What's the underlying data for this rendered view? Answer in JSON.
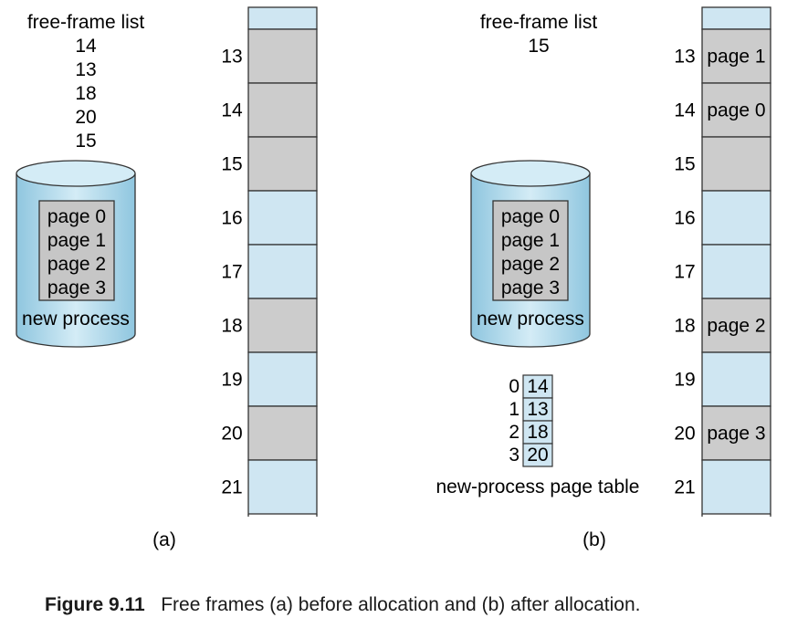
{
  "panel_a": {
    "free_frame_title": "free-frame list",
    "free_frames": [
      "14",
      "13",
      "18",
      "20",
      "15"
    ],
    "disk": {
      "pages": [
        "page 0",
        "page 1",
        "page 2",
        "page 3"
      ],
      "label": "new process"
    },
    "memory": {
      "frames": [
        {
          "number": "13",
          "state": "free",
          "content": ""
        },
        {
          "number": "14",
          "state": "free",
          "content": ""
        },
        {
          "number": "15",
          "state": "free",
          "content": ""
        },
        {
          "number": "16",
          "state": "used",
          "content": ""
        },
        {
          "number": "17",
          "state": "used",
          "content": ""
        },
        {
          "number": "18",
          "state": "free",
          "content": ""
        },
        {
          "number": "19",
          "state": "used",
          "content": ""
        },
        {
          "number": "20",
          "state": "free",
          "content": ""
        },
        {
          "number": "21",
          "state": "used",
          "content": ""
        }
      ]
    },
    "label": "(a)"
  },
  "panel_b": {
    "free_frame_title": "free-frame list",
    "free_frames": [
      "15"
    ],
    "disk": {
      "pages": [
        "page 0",
        "page 1",
        "page 2",
        "page 3"
      ],
      "label": "new process"
    },
    "page_table": {
      "indices": [
        "0",
        "1",
        "2",
        "3"
      ],
      "frames": [
        "14",
        "13",
        "18",
        "20"
      ],
      "label": "new-process page table"
    },
    "memory": {
      "frames": [
        {
          "number": "13",
          "state": "free",
          "content": "page 1"
        },
        {
          "number": "14",
          "state": "free",
          "content": "page 0"
        },
        {
          "number": "15",
          "state": "free",
          "content": ""
        },
        {
          "number": "16",
          "state": "used",
          "content": ""
        },
        {
          "number": "17",
          "state": "used",
          "content": ""
        },
        {
          "number": "18",
          "state": "free",
          "content": "page 2"
        },
        {
          "number": "19",
          "state": "used",
          "content": ""
        },
        {
          "number": "20",
          "state": "free",
          "content": "page 3"
        },
        {
          "number": "21",
          "state": "used",
          "content": ""
        }
      ]
    },
    "label": "(b)"
  },
  "caption": {
    "figure": "Figure 9.11",
    "text": "Free frames (a) before allocation and (b) after allocation."
  },
  "colors": {
    "free_frame": "#cccccc",
    "used_frame": "#cfe6f2",
    "disk_fill": "#c4e2f0",
    "disk_shade": "#9ccde4",
    "page_box": "#c6c6c6",
    "page_table_cell": "#cfe6f2",
    "stroke": "#333333"
  }
}
